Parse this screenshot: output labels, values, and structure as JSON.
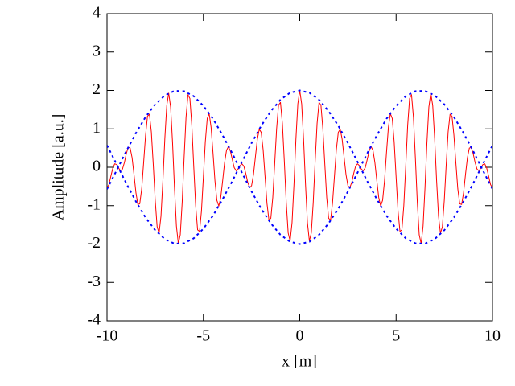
{
  "chart_data": {
    "type": "line",
    "xlabel": "x [m]",
    "ylabel": "Amplitude [a.u.]",
    "xlim": [
      -10,
      10
    ],
    "ylim": [
      -4,
      4
    ],
    "xticks": [
      -10,
      -5,
      0,
      5,
      10
    ],
    "yticks": [
      -4,
      -3,
      -2,
      -1,
      0,
      1,
      2,
      3,
      4
    ],
    "series": [
      {
        "color": "#ff0000",
        "dash": false,
        "x": [
          -10,
          -9.9,
          -9.8,
          -9.7,
          -9.6,
          -9.5,
          -9.4,
          -9.3,
          -9.2,
          -9.1,
          -9,
          -8.9,
          -8.8,
          -8.7,
          -8.6,
          -8.5,
          -8.4,
          -8.3,
          -8.2,
          -8.1,
          -8,
          -7.9,
          -7.8,
          -7.7,
          -7.6,
          -7.5,
          -7.4,
          -7.3,
          -7.2,
          -7.1,
          -7,
          -6.9,
          -6.8,
          -6.7,
          -6.6,
          -6.5,
          -6.4,
          -6.3,
          -6.2,
          -6.1,
          -6,
          -5.9,
          -5.8,
          -5.7,
          -5.6,
          -5.5,
          -5.4,
          -5.3,
          -5.2,
          -5.1,
          -5,
          -4.9,
          -4.8,
          -4.7,
          -4.6,
          -4.5,
          -4.4,
          -4.3,
          -4.2,
          -4.1,
          -4,
          -3.9,
          -3.8,
          -3.7,
          -3.6,
          -3.5,
          -3.4,
          -3.3,
          -3.2,
          -3.1,
          -3,
          -2.9,
          -2.8,
          -2.7,
          -2.6,
          -2.5,
          -2.4,
          -2.3,
          -2.2,
          -2.1,
          -2,
          -1.9,
          -1.8,
          -1.7,
          -1.6,
          -1.5,
          -1.4,
          -1.3,
          -1.2,
          -1.1,
          -1,
          -0.9,
          -0.8,
          -0.7,
          -0.6,
          -0.5,
          -0.4,
          -0.3,
          -0.2,
          -0.1,
          0,
          0.1,
          0.2,
          0.3,
          0.4,
          0.5,
          0.6,
          0.7,
          0.8,
          0.9,
          1,
          1.1,
          1.2,
          1.3,
          1.4,
          1.5,
          1.6,
          1.7,
          1.8,
          1.9,
          2,
          2.1,
          2.2,
          2.3,
          2.4,
          2.5,
          2.6,
          2.7,
          2.8,
          2.9,
          3,
          3.1,
          3.2,
          3.3,
          3.4,
          3.5,
          3.6,
          3.7,
          3.8,
          3.9,
          4,
          4.1,
          4.2,
          4.3,
          4.4,
          4.5,
          4.6,
          4.7,
          4.8,
          4.9,
          5,
          5.1,
          5.2,
          5.3,
          5.4,
          5.5,
          5.6,
          5.7,
          5.8,
          5.9,
          6,
          6.1,
          6.2,
          6.3,
          6.4,
          6.5,
          6.6,
          6.7,
          6.8,
          6.9,
          7,
          7.1,
          7.2,
          7.3,
          7.4,
          7.5,
          7.6,
          7.7,
          7.8,
          7.9,
          8,
          8.1,
          8.2,
          8.3,
          8.4,
          8.5,
          8.6,
          8.7,
          8.8,
          8.9,
          9,
          9.1,
          9.2,
          9.3,
          9.4,
          9.5,
          9.6,
          9.7,
          9.8,
          9.9,
          10
        ],
        "values": [
          -0.54,
          -0.45,
          -0.23,
          -0.02,
          0.09,
          0.07,
          -0.02,
          -0.09,
          -0.05,
          0.12,
          0.35,
          0.52,
          0.5,
          0.25,
          -0.19,
          -0.66,
          -0.97,
          -0.95,
          -0.56,
          0.12,
          0.83,
          1.33,
          1.38,
          0.92,
          0.07,
          -0.86,
          -1.55,
          -1.72,
          -1.27,
          -0.34,
          0.75,
          1.61,
          1.93,
          1.57,
          0.64,
          -0.53,
          -1.53,
          -1.99,
          -1.76,
          -0.91,
          0.25,
          1.3,
          1.89,
          1.79,
          1.09,
          0.02,
          -1.0,
          -1.63,
          -1.67,
          -1.14,
          -0.25,
          0.66,
          1.27,
          1.4,
          1.04,
          0.37,
          -0.35,
          -0.86,
          -1.01,
          -0.79,
          -0.35,
          0.12,
          0.44,
          0.54,
          0.42,
          0.2,
          -0.01,
          -0.09,
          -0.05,
          0.04,
          0.09,
          0.03,
          -0.16,
          -0.39,
          -0.53,
          -0.48,
          -0.19,
          0.27,
          0.73,
          0.99,
          0.91,
          0.46,
          -0.24,
          -0.94,
          -1.37,
          -1.33,
          -0.79,
          0.09,
          1.0,
          1.62,
          1.69,
          1.14,
          0.16,
          -0.92,
          -1.71,
          -1.92,
          -1.45,
          -0.45,
          0.72,
          1.65,
          2.0,
          1.65,
          0.72,
          -0.45,
          -1.45,
          -1.92,
          -1.71,
          -0.92,
          0.16,
          1.14,
          1.69,
          1.62,
          1.0,
          0.09,
          -0.79,
          -1.33,
          -1.37,
          -0.94,
          -0.24,
          0.46,
          0.91,
          0.99,
          0.73,
          0.27,
          -0.19,
          -0.48,
          -0.53,
          -0.39,
          -0.16,
          0.03,
          0.09,
          0.04,
          -0.05,
          -0.09,
          -0.01,
          0.2,
          0.42,
          0.54,
          0.44,
          0.12,
          -0.35,
          -0.79,
          -1.01,
          -0.86,
          -0.35,
          0.37,
          1.04,
          1.4,
          1.27,
          0.66,
          -0.25,
          -1.14,
          -1.67,
          -1.63,
          -1.0,
          0.02,
          1.09,
          1.79,
          1.89,
          1.3,
          0.25,
          -0.91,
          -1.76,
          -1.99,
          -1.53,
          -0.53,
          0.64,
          1.57,
          1.93,
          1.61,
          0.75,
          -0.34,
          -1.27,
          -1.72,
          -1.55,
          -0.86,
          0.07,
          0.92,
          1.38,
          1.33,
          0.83,
          0.12,
          -0.56,
          -0.95,
          -0.97,
          -0.66,
          -0.19,
          0.25,
          0.5,
          0.52,
          0.35,
          0.12,
          -0.05,
          -0.09,
          -0.02,
          0.07,
          0.09,
          -0.02,
          -0.23,
          -0.45,
          -0.54
        ]
      },
      {
        "color": "#0000ff",
        "dash": true,
        "x": [
          -10,
          -9.5,
          -9,
          -8.5,
          -8,
          -7.5,
          -7,
          -6.5,
          -6,
          -5.5,
          -5,
          -4.5,
          -4,
          -3.5,
          -3,
          -2.5,
          -2,
          -1.5,
          -1,
          -0.5,
          0,
          0.5,
          1,
          1.5,
          2,
          2.5,
          3,
          3.5,
          4,
          4.5,
          5,
          5.5,
          6,
          6.5,
          7,
          7.5,
          8,
          8.5,
          9,
          9.5,
          10
        ],
        "values": [
          0.57,
          0.08,
          -0.42,
          -0.89,
          -1.31,
          -1.64,
          -1.87,
          -1.99,
          -1.98,
          -1.85,
          -1.6,
          -1.26,
          -0.83,
          -0.36,
          0.14,
          0.63,
          1.08,
          1.46,
          1.76,
          1.94,
          2.0,
          1.94,
          1.76,
          1.46,
          1.08,
          0.63,
          0.14,
          -0.36,
          -0.83,
          -1.26,
          -1.6,
          -1.85,
          -1.98,
          -1.99,
          -1.87,
          -1.64,
          -1.31,
          -0.89,
          -0.42,
          0.08,
          0.57
        ]
      },
      {
        "color": "#0000ff",
        "dash": true,
        "x": [
          -10,
          -9.5,
          -9,
          -8.5,
          -8,
          -7.5,
          -7,
          -6.5,
          -6,
          -5.5,
          -5,
          -4.5,
          -4,
          -3.5,
          -3,
          -2.5,
          -2,
          -1.5,
          -1,
          -0.5,
          0,
          0.5,
          1,
          1.5,
          2,
          2.5,
          3,
          3.5,
          4,
          4.5,
          5,
          5.5,
          6,
          6.5,
          7,
          7.5,
          8,
          8.5,
          9,
          9.5,
          10
        ],
        "values": [
          -0.57,
          -0.08,
          0.42,
          0.89,
          1.31,
          1.64,
          1.87,
          1.99,
          1.98,
          1.85,
          1.6,
          1.26,
          0.83,
          0.36,
          -0.14,
          -0.63,
          -1.08,
          -1.46,
          -1.76,
          -1.94,
          -2.0,
          -1.94,
          -1.76,
          -1.46,
          -1.08,
          -0.63,
          -0.14,
          0.36,
          0.83,
          1.26,
          1.6,
          1.85,
          1.98,
          1.99,
          1.87,
          1.64,
          1.31,
          0.89,
          0.42,
          -0.08,
          -0.57
        ]
      }
    ]
  }
}
